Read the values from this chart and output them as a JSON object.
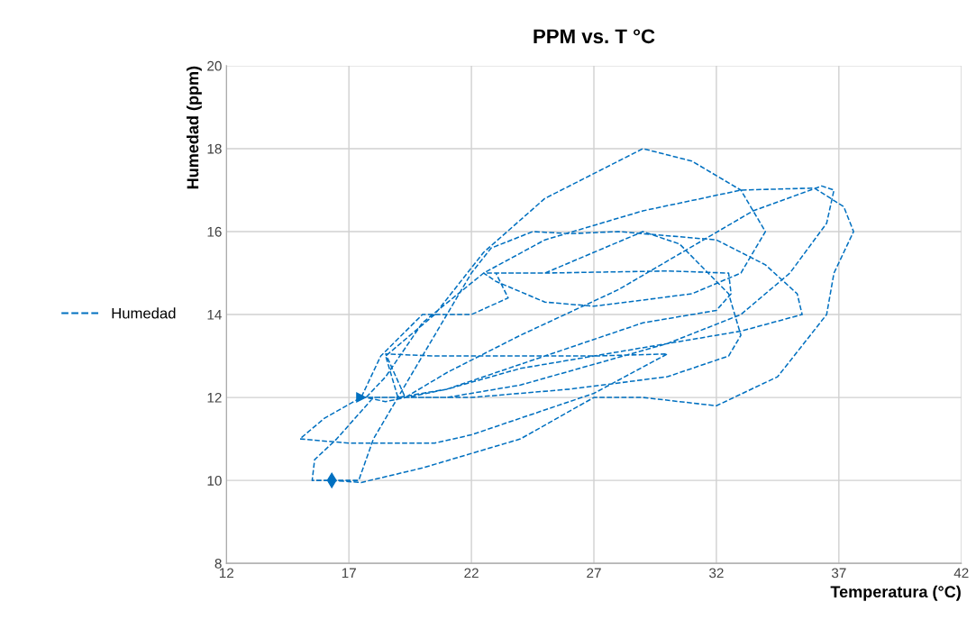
{
  "chart_data": {
    "type": "line",
    "title": "PPM vs. T °C",
    "xlabel": "Temperatura (°C)",
    "ylabel": "Humedad (ppm)",
    "xlim": [
      12,
      42
    ],
    "xticks": [
      12,
      17,
      22,
      27,
      32,
      37,
      42
    ],
    "ylim": [
      8,
      20
    ],
    "yticks": [
      8,
      10,
      12,
      14,
      16,
      18,
      20
    ],
    "grid": true,
    "legend": "left",
    "line_style": "dashed",
    "series": [
      {
        "name": "Humedad",
        "color": "#0070c0",
        "x": [
          16.3,
          17.5,
          20,
          24,
          27,
          29,
          32,
          34.5,
          36.5,
          36.8,
          37.6,
          37.2,
          36,
          33,
          29,
          25,
          22.5,
          20,
          18.5,
          17.7,
          18.5,
          21,
          25,
          29,
          32,
          32.6,
          32.5,
          30,
          25,
          23,
          23.5,
          22,
          20,
          18.3,
          17.5,
          16,
          15,
          17,
          19,
          20.5,
          22,
          24,
          27,
          30,
          27,
          23,
          20.5,
          18.5,
          19.3,
          21,
          24,
          28,
          33.5,
          36.3,
          36.8,
          36.5,
          35,
          33,
          30,
          27,
          24,
          21,
          18,
          16.5,
          15.6,
          15.5,
          16.2,
          17.4,
          18,
          19,
          20.5,
          22,
          22.8,
          24.5,
          26,
          28,
          32,
          34,
          35.3,
          35.5,
          33,
          30,
          27,
          24,
          21,
          19,
          18.5,
          20.5,
          22.5,
          25,
          29,
          31,
          33,
          34,
          33,
          31,
          27,
          25,
          23,
          22.5,
          25,
          27,
          29,
          30.5,
          32.5,
          33,
          32.5,
          30,
          26,
          22,
          19,
          17.5
        ],
        "values": [
          10.0,
          9.95,
          10.3,
          11.0,
          12.0,
          12.0,
          11.8,
          12.5,
          14,
          15,
          16,
          16.6,
          17.05,
          17.0,
          16.5,
          15.8,
          15.0,
          13.8,
          12.5,
          12.0,
          11.9,
          12.2,
          13,
          13.8,
          14.1,
          14.5,
          15,
          15.05,
          15.0,
          15.0,
          14.4,
          14,
          14,
          13,
          12,
          11.5,
          11.0,
          10.9,
          10.9,
          10.9,
          11.1,
          11.5,
          12.1,
          13.05,
          13.0,
          13.0,
          13.0,
          13.05,
          12.0,
          12.6,
          13.5,
          14.6,
          16.5,
          17.1,
          17.0,
          16.2,
          15,
          14,
          13.3,
          12.8,
          12.3,
          12.0,
          12.0,
          11.0,
          10.5,
          10.0,
          10.0,
          10.0,
          11,
          12,
          13.5,
          15,
          15.6,
          16,
          15.95,
          16,
          15.8,
          15.2,
          14.5,
          14.0,
          13.6,
          13.3,
          13.0,
          12.7,
          12.2,
          12.0,
          13,
          14,
          15.5,
          16.8,
          18,
          17.7,
          17,
          16,
          15,
          14.5,
          14.2,
          14.3,
          14.8,
          15.0,
          15,
          15.5,
          16,
          15.7,
          14.5,
          13.5,
          13,
          12.5,
          12.2,
          12.0,
          12.0,
          12.0
        ]
      }
    ]
  }
}
